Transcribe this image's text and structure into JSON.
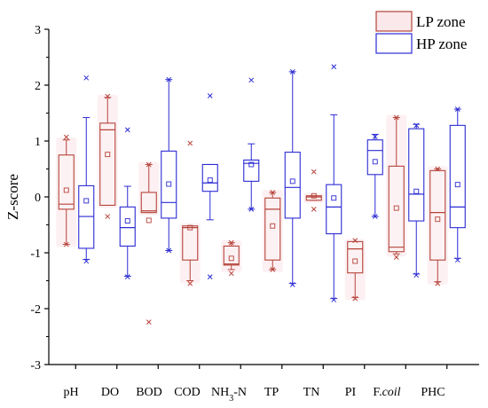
{
  "chart_data": {
    "type": "box",
    "ylabel": "Z-score",
    "ylim": [
      -3,
      3
    ],
    "yticks": [
      "-3",
      "-2",
      "-1",
      "0",
      "1",
      "2",
      "3"
    ],
    "grid": false,
    "legend_position": "top-right",
    "colors": {
      "LP": "#b5433a",
      "HP": "#2b2bd4"
    },
    "categories": [
      {
        "label": "pH"
      },
      {
        "label": "DO"
      },
      {
        "label": "BOD"
      },
      {
        "label": "COD"
      },
      {
        "label": "NH",
        "sub": "3",
        "rest": "-N"
      },
      {
        "label": "TP"
      },
      {
        "label": "TN"
      },
      {
        "label": "PI"
      },
      {
        "label": "F.",
        "italic": "coil"
      },
      {
        "label": "PHC"
      }
    ],
    "series": [
      {
        "name": "LP zone",
        "boxes": [
          {
            "category": "pH",
            "min": -0.85,
            "q1": -0.22,
            "median": -0.13,
            "q3": 0.75,
            "max": 1.02,
            "mean": 0.12,
            "outliers": [
              1.07,
              -0.85
            ]
          },
          {
            "category": "DO",
            "min": -0.15,
            "q1": -0.15,
            "median": 1.2,
            "q3": 1.32,
            "max": 1.78,
            "mean": 0.76,
            "outliers": [
              1.8,
              -0.35
            ]
          },
          {
            "category": "BOD",
            "min": -0.28,
            "q1": -0.28,
            "median": -0.25,
            "q3": 0.08,
            "max": 0.58,
            "mean": -0.42,
            "outliers": [
              0.58,
              -2.24
            ]
          },
          {
            "category": "COD",
            "min": -1.5,
            "q1": -1.13,
            "median": -0.55,
            "q3": -0.52,
            "max": -0.52,
            "mean": -0.55,
            "outliers": [
              0.96,
              -1.55
            ]
          },
          {
            "category": "NH3-N",
            "min": -1.3,
            "q1": -1.22,
            "median": -1.2,
            "q3": -0.88,
            "max": -0.82,
            "mean": -1.1,
            "outliers": [
              -0.82,
              -1.37
            ]
          },
          {
            "category": "TP",
            "min": -1.3,
            "q1": -1.13,
            "median": -0.22,
            "q3": -0.02,
            "max": 0.08,
            "mean": -0.52,
            "outliers": [
              0.08,
              -1.3
            ]
          },
          {
            "category": "TN",
            "min": -0.06,
            "q1": -0.06,
            "median": 0.0,
            "q3": 0.02,
            "max": 0.02,
            "mean": 0.02,
            "outliers": [
              0.45,
              -0.22
            ]
          },
          {
            "category": "PI",
            "min": -1.8,
            "q1": -1.36,
            "median": -0.93,
            "q3": -0.8,
            "max": -0.8,
            "mean": -1.15,
            "outliers": [
              -0.78,
              -1.82
            ]
          },
          {
            "category": "F.coil",
            "min": -1.02,
            "q1": -0.98,
            "median": -0.9,
            "q3": 0.55,
            "max": 1.42,
            "mean": -0.2,
            "outliers": [
              1.42,
              -1.08
            ]
          },
          {
            "category": "PHC",
            "min": -1.52,
            "q1": -1.13,
            "median": -0.28,
            "q3": 0.47,
            "max": 0.5,
            "mean": -0.4,
            "outliers": [
              0.5,
              -1.55
            ]
          }
        ]
      },
      {
        "name": "HP zone",
        "boxes": [
          {
            "category": "pH",
            "min": -1.12,
            "q1": -0.92,
            "median": -0.35,
            "q3": 0.2,
            "max": 1.42,
            "mean": -0.07,
            "outliers": [
              2.13,
              -1.15
            ]
          },
          {
            "category": "DO",
            "min": -1.42,
            "q1": -0.88,
            "median": -0.55,
            "q3": -0.18,
            "max": 0.19,
            "mean": -0.43,
            "outliers": [
              1.2,
              -1.43
            ]
          },
          {
            "category": "BOD",
            "min": -0.96,
            "q1": -0.38,
            "median": -0.1,
            "q3": 0.82,
            "max": 2.1,
            "mean": 0.23,
            "outliers": [
              2.1,
              -0.96
            ]
          },
          {
            "category": "COD",
            "min": -0.41,
            "q1": 0.1,
            "median": 0.25,
            "q3": 0.58,
            "max": 0.58,
            "mean": 0.3,
            "outliers": [
              1.81,
              -1.43
            ]
          },
          {
            "category": "NH3-N",
            "min": -0.22,
            "q1": 0.28,
            "median": 0.6,
            "q3": 0.66,
            "max": 0.95,
            "mean": 0.58,
            "outliers": [
              2.09,
              -0.22
            ]
          },
          {
            "category": "TP",
            "min": -1.55,
            "q1": -0.38,
            "median": 0.17,
            "q3": 0.8,
            "max": 2.24,
            "mean": 0.28,
            "outliers": [
              2.24,
              -1.57
            ]
          },
          {
            "category": "TN",
            "min": -1.82,
            "q1": -0.66,
            "median": -0.18,
            "q3": 0.22,
            "max": 1.47,
            "mean": -0.02,
            "outliers": [
              2.33,
              -1.84
            ]
          },
          {
            "category": "PI",
            "min": -0.35,
            "q1": 0.4,
            "median": 0.83,
            "q3": 1.02,
            "max": 1.12,
            "mean": 0.63,
            "outliers": [
              1.08,
              -0.35
            ]
          },
          {
            "category": "F.coil",
            "min": -1.38,
            "q1": -0.43,
            "median": 0.05,
            "q3": 1.22,
            "max": 1.3,
            "mean": 0.1,
            "outliers": [
              1.28,
              -1.4
            ]
          },
          {
            "category": "PHC",
            "min": -1.1,
            "q1": -0.55,
            "median": -0.18,
            "q3": 1.28,
            "max": 1.57,
            "mean": 0.22,
            "outliers": [
              1.57,
              -1.13
            ]
          }
        ]
      }
    ]
  }
}
